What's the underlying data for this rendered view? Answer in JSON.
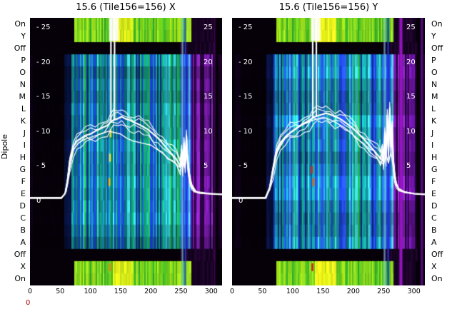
{
  "figure": {
    "title_x": "15.6 (Tile156=156) X",
    "title_y": "15.6 (Tile156=156) Y",
    "ylabel": "Dipole",
    "corner_label": "0",
    "corner_label_color": "#aa0000"
  },
  "row_labels": [
    "On",
    "Y",
    "Off",
    "P",
    "O",
    "N",
    "M",
    "L",
    "K",
    "J",
    "I",
    "H",
    "G",
    "F",
    "E",
    "D",
    "C",
    "B",
    "A",
    "Off",
    "X",
    "On"
  ],
  "row_types": [
    "cal",
    "cal",
    "off",
    "dip",
    "dip",
    "dip",
    "dip",
    "dip",
    "dip",
    "dip",
    "dip",
    "dip",
    "dip",
    "dip",
    "dip",
    "dip",
    "dip",
    "dip",
    "dip",
    "off",
    "cal",
    "cal"
  ],
  "x_ticks": [
    0,
    50,
    100,
    150,
    200,
    250,
    300
  ],
  "inner_axis": {
    "left_labels": [
      "- 25",
      "- 20",
      "- 15",
      "- 10",
      "- 5",
      "0"
    ],
    "right_labels": [
      "25",
      "20",
      "15",
      "10",
      "5"
    ],
    "values": [
      25,
      20,
      15,
      10,
      5,
      0
    ],
    "range": [
      0,
      25
    ]
  },
  "palettes": {
    "background": "#ffffff",
    "heat_dark": "#050007",
    "line": "#ffffff",
    "passband": [
      "#1a3fd0",
      "#2450e0",
      "#1660c8",
      "#18a0b0",
      "#14b090",
      "#22b84a",
      "#129868",
      "#0d4fb0",
      "#0a2a90",
      "#38c0c8",
      "#1888a8",
      "#0c6878"
    ],
    "edge": [
      "#2846e0",
      "#58b8e0",
      "#1a30c0",
      "#20a8c0",
      "#3858e8"
    ],
    "purple": [
      "#480a6c",
      "#5c1090",
      "#33054e",
      "#1e0232",
      "#70189c",
      "#8824b8",
      "#26033c"
    ],
    "off_purple": [
      "#180224",
      "#220430",
      "#10021a"
    ],
    "bright": [
      "#5ec420",
      "#84d41c",
      "#a8e018",
      "#46b824",
      "#98dc20",
      "#6cc81c",
      "#30a828"
    ],
    "bright_yellow": [
      "#d8e818",
      "#e8f016",
      "#c8e018",
      "#f0f020"
    ],
    "pre_edge": [
      "#061034",
      "#081448",
      "#0a1040"
    ]
  },
  "chart_data": [
    {
      "type": "heatmap",
      "panel": "X",
      "title": "15.6 (Tile156=156) X",
      "x_range": [
        0,
        318
      ],
      "x_ticks": [
        0,
        50,
        100,
        150,
        200,
        250,
        300
      ],
      "value_axis_ticks": [
        25,
        20,
        15,
        10,
        5,
        0
      ],
      "seed": 7,
      "series": [
        [
          [
            0,
            0.6
          ],
          [
            52,
            0.6
          ],
          [
            58,
            1.2
          ],
          [
            62,
            3
          ],
          [
            66,
            6
          ],
          [
            72,
            8
          ],
          [
            78,
            8.8
          ],
          [
            85,
            9.2
          ],
          [
            92,
            9.6
          ],
          [
            100,
            9.8
          ],
          [
            108,
            10.2
          ],
          [
            115,
            10.5
          ],
          [
            122,
            10.8
          ],
          [
            128,
            11.0
          ],
          [
            133,
            11.5
          ],
          [
            138,
            11.8
          ],
          [
            145,
            12.0
          ],
          [
            152,
            12.3
          ],
          [
            158,
            12.0
          ],
          [
            165,
            11.8
          ],
          [
            172,
            11.5
          ],
          [
            180,
            11.2
          ],
          [
            188,
            10.8
          ],
          [
            196,
            10.4
          ],
          [
            204,
            9.8
          ],
          [
            212,
            9.2
          ],
          [
            220,
            8.4
          ],
          [
            228,
            7.6
          ],
          [
            236,
            6.8
          ],
          [
            242,
            6.2
          ],
          [
            246,
            5.6
          ],
          [
            249,
            5.2
          ],
          [
            251,
            7.5
          ],
          [
            253,
            5.0
          ],
          [
            255,
            8.5
          ],
          [
            257,
            5.5
          ],
          [
            259,
            9.5
          ],
          [
            261,
            6.0
          ],
          [
            263,
            4.5
          ],
          [
            265,
            3.2
          ],
          [
            268,
            2.2
          ],
          [
            272,
            1.6
          ],
          [
            280,
            1.3
          ],
          [
            295,
            1.2
          ],
          [
            318,
            1.1
          ]
        ],
        [
          [
            0,
            0.5
          ],
          [
            52,
            0.5
          ],
          [
            60,
            1.5
          ],
          [
            66,
            5.0
          ],
          [
            72,
            7.5
          ],
          [
            80,
            8.5
          ],
          [
            90,
            9.0
          ],
          [
            100,
            9.3
          ],
          [
            110,
            9.6
          ],
          [
            120,
            9.9
          ],
          [
            130,
            10.2
          ],
          [
            140,
            10.0
          ],
          [
            150,
            9.8
          ],
          [
            160,
            9.2
          ],
          [
            170,
            8.8
          ],
          [
            180,
            8.6
          ],
          [
            190,
            8.4
          ],
          [
            200,
            8.2
          ],
          [
            210,
            7.6
          ],
          [
            220,
            7.0
          ],
          [
            230,
            6.2
          ],
          [
            240,
            5.6
          ],
          [
            248,
            5.0
          ],
          [
            252,
            6.5
          ],
          [
            256,
            5.0
          ],
          [
            260,
            7.0
          ],
          [
            264,
            4.0
          ],
          [
            268,
            2.5
          ],
          [
            275,
            1.5
          ],
          [
            300,
            1.2
          ],
          [
            318,
            1.1
          ]
        ]
      ],
      "spikes": [
        134,
        140
      ],
      "top_flare": {
        "x0": 131,
        "x1": 147
      },
      "bright_stripes": [
        {
          "x": 251,
          "w": 3,
          "color": "#86c8e8",
          "alpha": 0.65
        },
        {
          "x": 256,
          "w": 2.5,
          "color": "#2a40e0",
          "alpha": 0.8
        },
        {
          "x": 304,
          "w": 3,
          "color": "#3a0650",
          "alpha": 0.9
        }
      ],
      "marks": [
        {
          "x": 132,
          "row": 9,
          "color": "#e8e020"
        },
        {
          "x": 131,
          "row": 11,
          "color": "#f2e320"
        },
        {
          "x": 130,
          "row": 13,
          "color": "#f2c300"
        },
        {
          "x": 131,
          "row": 20,
          "color": "#f08010"
        }
      ]
    },
    {
      "type": "heatmap",
      "panel": "Y",
      "title": "15.6 (Tile156=156) Y",
      "x_range": [
        0,
        318
      ],
      "x_ticks": [
        0,
        50,
        100,
        150,
        200,
        250,
        300
      ],
      "value_axis_ticks": [
        25,
        20,
        15,
        10,
        5,
        0
      ],
      "seed": 13,
      "series": [
        [
          [
            0,
            0.6
          ],
          [
            55,
            0.6
          ],
          [
            62,
            2.0
          ],
          [
            68,
            5.0
          ],
          [
            74,
            7.5
          ],
          [
            80,
            8.6
          ],
          [
            88,
            9.4
          ],
          [
            96,
            10.0
          ],
          [
            104,
            10.5
          ],
          [
            112,
            11.0
          ],
          [
            120,
            11.4
          ],
          [
            128,
            11.8
          ],
          [
            134,
            12.2
          ],
          [
            140,
            12.4
          ],
          [
            148,
            12.6
          ],
          [
            155,
            12.8
          ],
          [
            162,
            12.6
          ],
          [
            170,
            12.3
          ],
          [
            178,
            12.0
          ],
          [
            186,
            11.5
          ],
          [
            194,
            11.0
          ],
          [
            202,
            10.4
          ],
          [
            210,
            9.7
          ],
          [
            218,
            9.0
          ],
          [
            226,
            8.2
          ],
          [
            234,
            7.4
          ],
          [
            240,
            6.8
          ],
          [
            245,
            6.2
          ],
          [
            248,
            7.5
          ],
          [
            250,
            6.0
          ],
          [
            252,
            10.0
          ],
          [
            254,
            6.5
          ],
          [
            256,
            12.5
          ],
          [
            258,
            7.0
          ],
          [
            260,
            13.5
          ],
          [
            262,
            8.0
          ],
          [
            264,
            11.0
          ],
          [
            266,
            6.0
          ],
          [
            268,
            4.0
          ],
          [
            271,
            2.5
          ],
          [
            275,
            1.8
          ],
          [
            285,
            1.4
          ],
          [
            300,
            1.2
          ],
          [
            318,
            1.1
          ]
        ],
        [
          [
            0,
            0.5
          ],
          [
            56,
            0.5
          ],
          [
            64,
            2.5
          ],
          [
            70,
            6.0
          ],
          [
            78,
            8.0
          ],
          [
            86,
            9.0
          ],
          [
            94,
            9.8
          ],
          [
            102,
            10.3
          ],
          [
            110,
            10.8
          ],
          [
            118,
            11.2
          ],
          [
            126,
            11.5
          ],
          [
            134,
            11.8
          ],
          [
            142,
            12.0
          ],
          [
            150,
            12.2
          ],
          [
            158,
            12.0
          ],
          [
            166,
            11.7
          ],
          [
            174,
            11.3
          ],
          [
            182,
            10.9
          ],
          [
            190,
            10.4
          ],
          [
            198,
            9.8
          ],
          [
            206,
            9.2
          ],
          [
            214,
            8.5
          ],
          [
            222,
            7.8
          ],
          [
            230,
            7.0
          ],
          [
            238,
            6.4
          ],
          [
            244,
            5.8
          ],
          [
            250,
            5.4
          ],
          [
            254,
            6.8
          ],
          [
            258,
            5.6
          ],
          [
            262,
            7.2
          ],
          [
            266,
            4.8
          ],
          [
            270,
            3.0
          ],
          [
            274,
            2.0
          ],
          [
            282,
            1.5
          ],
          [
            300,
            1.2
          ],
          [
            318,
            1.1
          ]
        ]
      ],
      "spikes": [
        133,
        139
      ],
      "top_flare": {
        "x0": 130,
        "x1": 146
      },
      "bright_stripes": [
        {
          "x": 250,
          "w": 3,
          "color": "#7ab8e0",
          "alpha": 0.65
        },
        {
          "x": 256,
          "w": 3,
          "color": "#2434d8",
          "alpha": 0.8
        },
        {
          "x": 276,
          "w": 5,
          "color": "#a016cc",
          "alpha": 0.9
        },
        {
          "x": 311,
          "w": 4,
          "color": "#5a0a84",
          "alpha": 0.9
        }
      ],
      "marks": [
        {
          "x": 130,
          "row": 12,
          "color": "#e02020"
        },
        {
          "x": 133,
          "row": 13,
          "color": "#f06000"
        },
        {
          "x": 131,
          "row": 20,
          "color": "#e01818"
        }
      ]
    }
  ]
}
